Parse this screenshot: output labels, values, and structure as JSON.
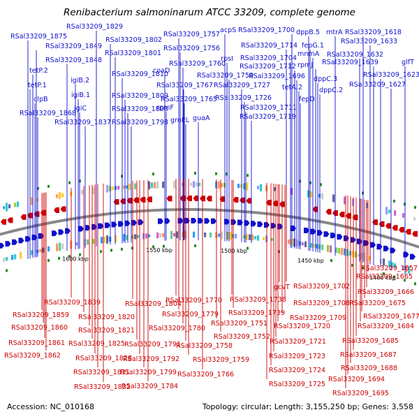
{
  "title": "Renibacterium salmoninarum ATCC 33209, complete genome",
  "footer": {
    "accession": "Accession: NC_010168",
    "summary": "Topology: circular; Length: 3,155,250 bp; Genes: 3,558"
  },
  "colors": {
    "forward": "#1010cc",
    "reverse": "#cc0000",
    "backbone": "#888888",
    "feature_green": "#2e8b2e"
  },
  "scale_ticks": [
    "1600 kbp",
    "1550 kbp",
    "1500 kbp",
    "1450 kbp",
    "1400 kbp"
  ],
  "forward_labels": [
    "RSal33209_1829",
    "RSal33209_1875",
    "RSal33209_1849",
    "RSal33209_1848",
    "tetP.2",
    "tetP.1",
    "clpB",
    "RSal33209_1868",
    "igiB.2",
    "igiB.1",
    "igiC",
    "RSal33209_1837",
    "RSal33209_1802",
    "RSal33209_1801",
    "RSal33209_1810",
    "RSal33209_1809",
    "RSal33209_1808",
    "RSal33209_1798",
    "coaD",
    "rpmF",
    "RSal33209_1757",
    "RSal33209_1756",
    "RSal33209_1760",
    "RSal33209_1767",
    "RSal33209_1765",
    "groEL",
    "guaA",
    "acpS",
    "rpsI",
    "RSal33209_1750",
    "RSal33209_1727",
    "RSal33209_1726",
    "RSal33209_1711",
    "RSal33209_1719",
    "RSal33209_1700",
    "RSal33209_1714",
    "RSal33209_1704",
    "RSal33209_1712",
    "RSal33209_1696",
    "tetA.2",
    "fepD",
    "dppB.5",
    "fepG.1",
    "mnmA",
    "rpmJ",
    "dppC.3",
    "dppC.2",
    "mtrA",
    "RSal33209_1618",
    "RSal33209_1633",
    "RSal33209_1632",
    "RSal33209_1639",
    "RSal33209_1623",
    "glfT",
    "RSal33209_1627"
  ],
  "reverse_labels": [
    "RSal33209_1839",
    "RSal33209_1859",
    "RSal33209_1860",
    "RSal33209_1861",
    "RSal33209_1862",
    "RSal33209_1820",
    "RSal33209_1821",
    "RSal33209_1825",
    "RSal33209_1828",
    "RSal33209_1831",
    "RSal33209_1822",
    "RSal33209_1804",
    "RSal33209_1791",
    "RSal33209_1792",
    "RSal33209_1799",
    "RSal33209_1784",
    "RSal33209_1770",
    "RSal33209_1779",
    "RSal33209_1780",
    "RSal33209_1758",
    "RSal33209_1759",
    "RSal33209_1766",
    "RSal33209_1738",
    "RSal33209_1739",
    "RSal33209_1751",
    "RSal33209_1752",
    "gcvT",
    "RSal33209_1702",
    "RSal33209_1708",
    "RSal33209_1709",
    "RSal33209_1720",
    "RSal33209_1721",
    "RSal33209_1723",
    "RSal33209_1724",
    "RSal33209_1725",
    "RSal33209_1657",
    "RSal33209_1665",
    "RSal33209_1666",
    "RSal33209_1675",
    "RSal33209_1677",
    "RSal33209_1684",
    "RSal33209_1685",
    "RSal33209_1687",
    "RSal33209_1688",
    "RSal33209_1694",
    "RSal33209_1695"
  ]
}
